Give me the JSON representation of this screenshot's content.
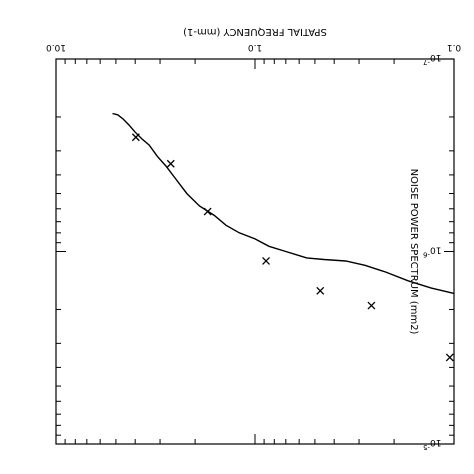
{
  "chart_data": {
    "type": "scatter",
    "orientation": "rotated-180",
    "title": "",
    "xlabel": "SPATIAL FREQUENCY (mm-1)",
    "ylabel": "NOISE POWER SPECTRUM (mm2)",
    "xscale": "log",
    "yscale": "log",
    "xlim": [
      0.1,
      10.0
    ],
    "ylim": [
      1e-07,
      1e-05
    ],
    "x_ticks": [
      {
        "value": 0.1,
        "label": "0.1"
      },
      {
        "value": 1.0,
        "label": "1.0"
      },
      {
        "value": 10.0,
        "label": "10.0"
      }
    ],
    "y_ticks": [
      {
        "value": 1e-07,
        "label": "10-7",
        "base": "10",
        "exp": "-7"
      },
      {
        "value": 1e-06,
        "label": "10-6",
        "base": "10",
        "exp": "-6"
      },
      {
        "value": 1e-05,
        "label": "10-5",
        "base": "10",
        "exp": "-5"
      }
    ],
    "series": [
      {
        "kind": "line",
        "x": [
          0.1,
          0.13,
          0.17,
          0.22,
          0.28,
          0.35,
          0.45,
          0.55,
          0.7,
          0.85,
          1.0,
          1.2,
          1.4,
          1.6,
          1.9,
          2.2,
          2.5,
          2.8,
          3.1,
          3.4,
          3.7,
          4.0,
          4.3,
          4.6,
          4.9,
          5.2
        ],
        "y": [
          1.65e-06,
          1.55e-06,
          1.42e-06,
          1.28e-06,
          1.18e-06,
          1.12e-06,
          1.1e-06,
          1.08e-06,
          1e-06,
          9.4e-07,
          8.6e-07,
          8e-07,
          7.3e-07,
          6.5e-07,
          5.8e-07,
          5e-07,
          4.2e-07,
          3.6e-07,
          3.2e-07,
          2.8e-07,
          2.6e-07,
          2.4e-07,
          2.2e-07,
          2.05e-07,
          1.95e-07,
          1.92e-07
        ]
      },
      {
        "kind": "markers",
        "marker": "x",
        "x": [
          0.105,
          0.26,
          0.47,
          0.88,
          1.73,
          2.65,
          3.97
        ],
        "y": [
          3.55e-06,
          1.91e-06,
          1.6e-06,
          1.12e-06,
          6.2e-07,
          3.5e-07,
          2.55e-07
        ]
      }
    ]
  }
}
